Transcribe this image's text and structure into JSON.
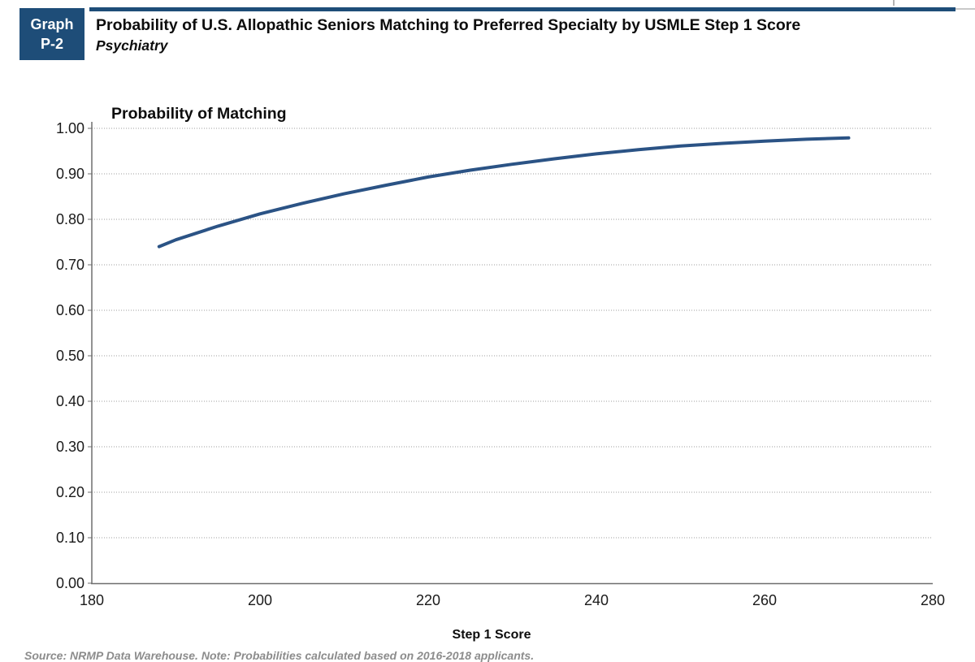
{
  "header": {
    "badge_line1": "Graph",
    "badge_line2": "P-2",
    "title": "Probability of U.S. Allopathic Seniors Matching to Preferred Specialty by USMLE Step 1 Score",
    "subtitle": "Psychiatry"
  },
  "chart_data": {
    "type": "line",
    "title": "Probability of Matching",
    "xlabel": "Step 1 Score",
    "ylabel": "Probability of Matching",
    "xlim": [
      180,
      280
    ],
    "ylim": [
      0,
      1
    ],
    "x_ticks": [
      "180",
      "200",
      "220",
      "240",
      "260",
      "280"
    ],
    "y_ticks": [
      "0.00",
      "0.10",
      "0.20",
      "0.30",
      "0.40",
      "0.50",
      "0.60",
      "0.70",
      "0.80",
      "0.90",
      "1.00"
    ],
    "grid": "horizontal-dotted",
    "legend": "none",
    "series": [
      {
        "name": "Psychiatry",
        "color": "#2b5385",
        "x": [
          188,
          190,
          195,
          200,
          205,
          210,
          215,
          220,
          225,
          230,
          235,
          240,
          245,
          250,
          255,
          260,
          265,
          270
        ],
        "y": [
          0.74,
          0.755,
          0.785,
          0.812,
          0.835,
          0.856,
          0.875,
          0.893,
          0.908,
          0.921,
          0.933,
          0.944,
          0.953,
          0.961,
          0.967,
          0.972,
          0.976,
          0.979
        ]
      }
    ]
  },
  "footer": {
    "source_note": "Source: NRMP Data Warehouse. Note: Probabilities calculated based on 2016-2018 applicants."
  },
  "colors": {
    "accent_navy": "#1e4d78",
    "curve_navy": "#2b5385",
    "gridline_gray": "#9c9c9c",
    "axis_gray": "#6e6e6e",
    "tick_label": "#1a1a1a",
    "source_gray": "#8c8c8c"
  }
}
